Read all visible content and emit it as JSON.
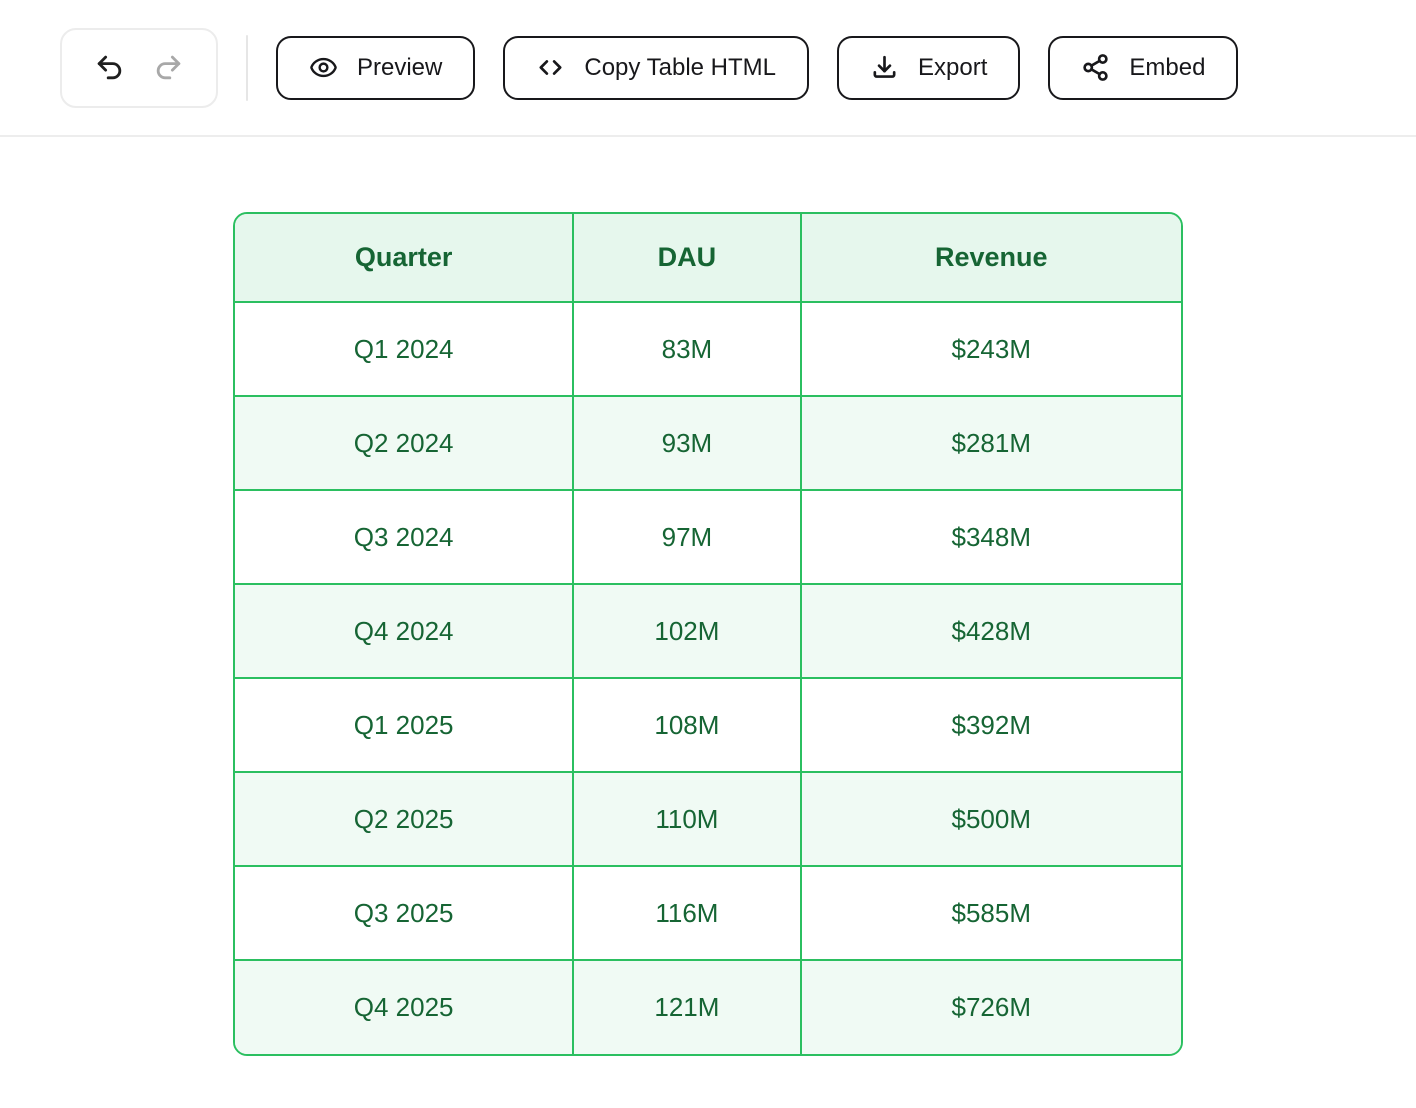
{
  "toolbar": {
    "undo_redo": {
      "undo_icon": "undo-arrow-icon",
      "redo_icon": "redo-arrow-icon",
      "redo_disabled": true
    },
    "buttons": [
      {
        "label": "Preview",
        "icon": "eye-icon"
      },
      {
        "label": "Copy Table HTML",
        "icon": "code-brackets-icon"
      },
      {
        "label": "Export",
        "icon": "download-icon"
      },
      {
        "label": "Embed",
        "icon": "share-nodes-icon"
      }
    ]
  },
  "table": {
    "columns": [
      "Quarter",
      "DAU",
      "Revenue"
    ],
    "rows": [
      [
        "Q1 2024",
        "83M",
        "$243M"
      ],
      [
        "Q2 2024",
        "93M",
        "$281M"
      ],
      [
        "Q3 2024",
        "97M",
        "$348M"
      ],
      [
        "Q4 2024",
        "102M",
        "$428M"
      ],
      [
        "Q1 2025",
        "108M",
        "$392M"
      ],
      [
        "Q2 2025",
        "110M",
        "$500M"
      ],
      [
        "Q3 2025",
        "116M",
        "$585M"
      ],
      [
        "Q4 2025",
        "121M",
        "$726M"
      ]
    ]
  },
  "colors": {
    "table_border": "#2bbf60",
    "table_text": "#166534",
    "header_bg": "#e6f7ed",
    "alt_row_bg": "#f0faf4",
    "button_border": "#18181b",
    "disabled_icon": "#a8a8a8"
  }
}
